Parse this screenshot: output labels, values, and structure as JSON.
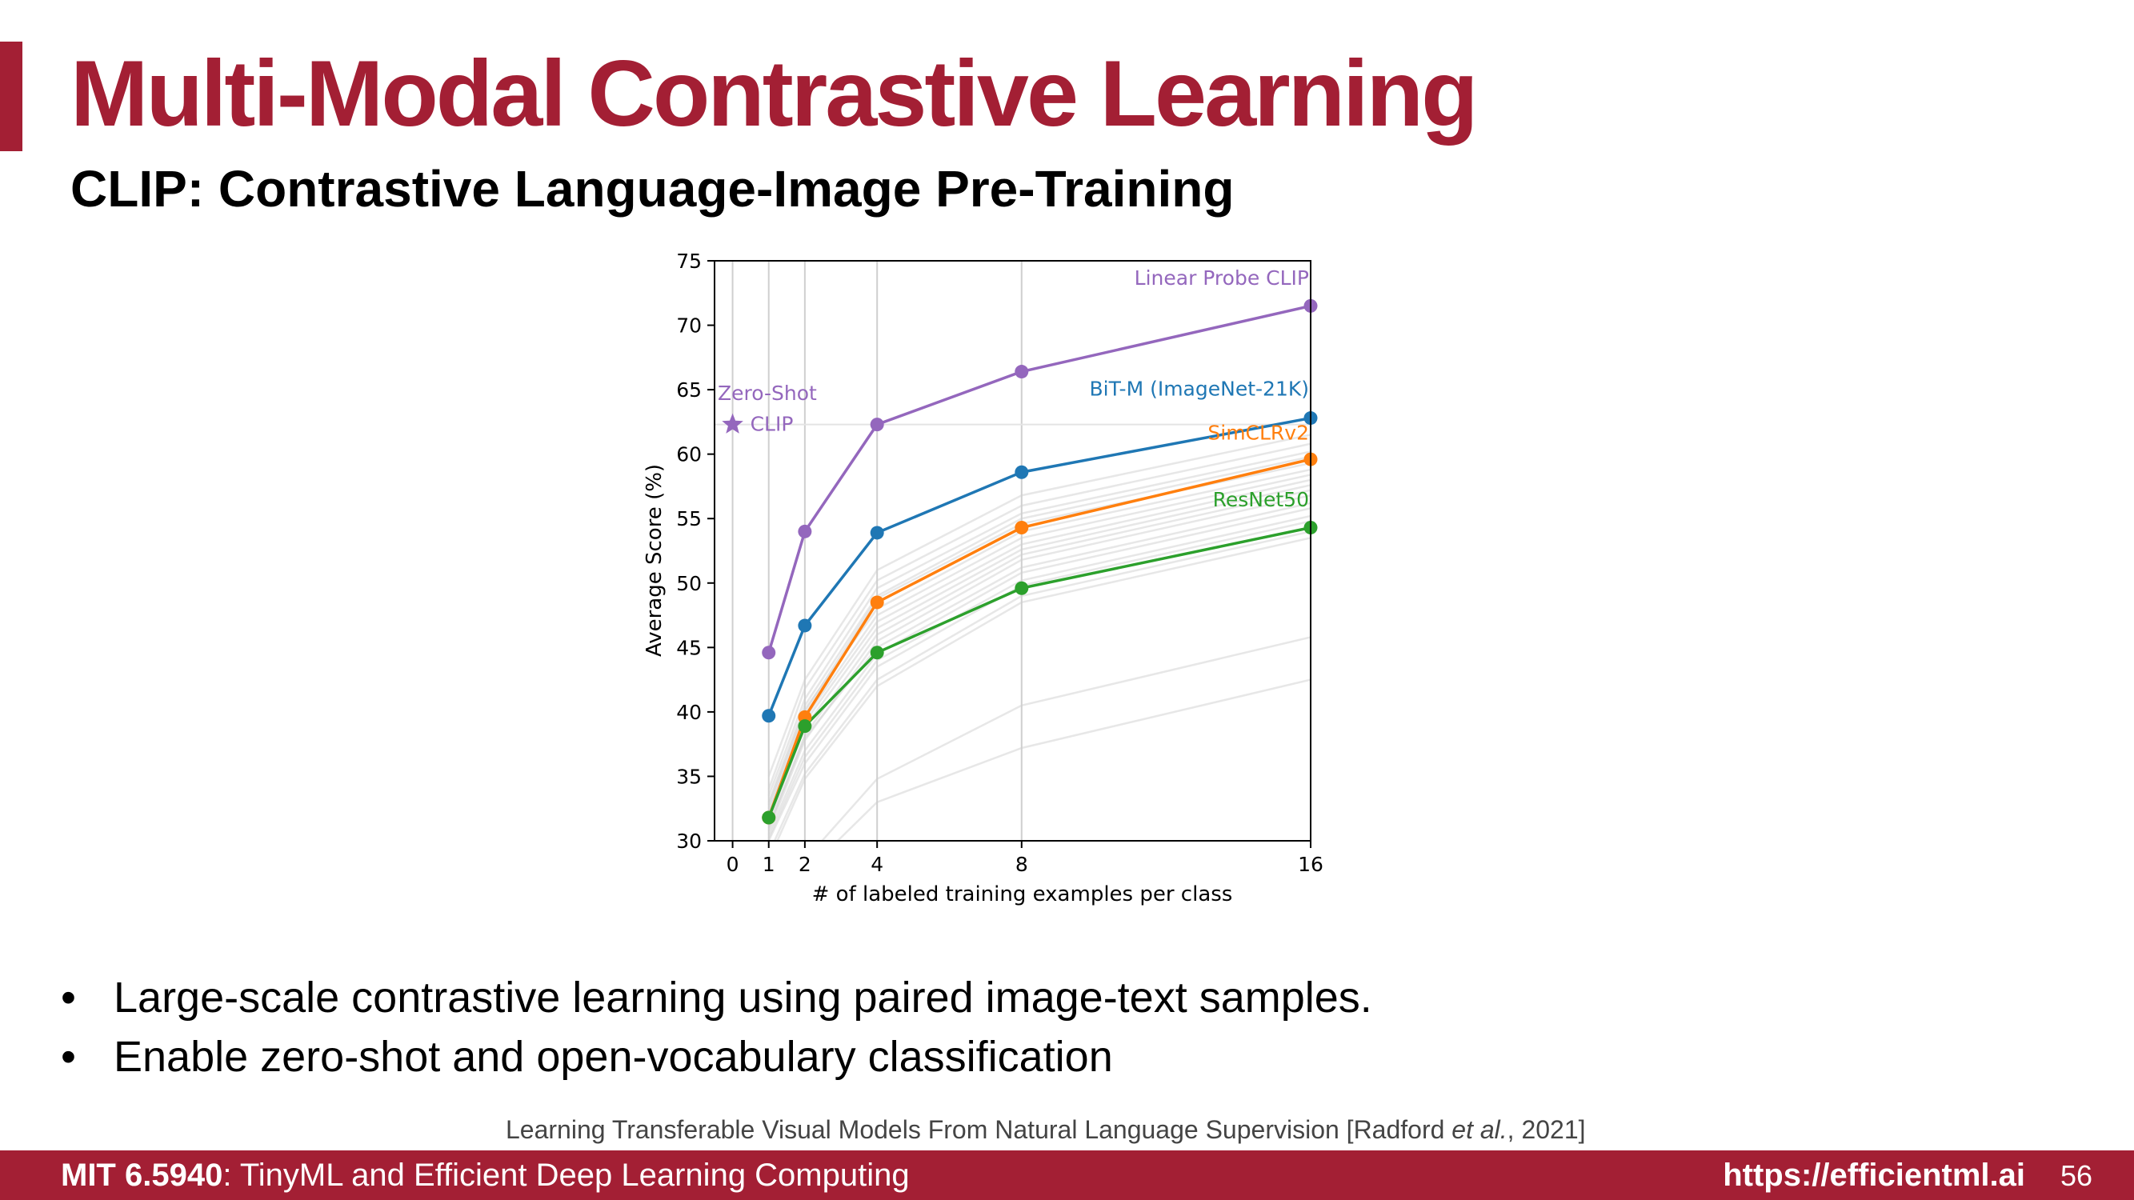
{
  "slide": {
    "title": "Multi-Modal Contrastive Learning",
    "subtitle": "CLIP: Contrastive Language-Image Pre-Training",
    "accent_color": "#a31f34"
  },
  "bullets": [
    "Large-scale contrastive learning using paired image-text samples.",
    "Enable zero-shot and open-vocabulary classification"
  ],
  "citation": {
    "prefix": "Learning Transferable Visual Models From Natural Language Supervision [Radford ",
    "etal": "et al.",
    "suffix": ", 2021]"
  },
  "footer": {
    "course_code": "MIT 6.5940",
    "course_rest": ": TinyML and Efficient Deep Learning Computing",
    "url": "https://efficientml.ai",
    "page": "56"
  },
  "chart_data": {
    "type": "line",
    "xlabel": "# of labeled training examples per class",
    "ylabel": "Average Score (%)",
    "xlim": [
      -0.5,
      16
    ],
    "ylim": [
      30,
      75
    ],
    "x_ticks": [
      0,
      1,
      2,
      4,
      8,
      16
    ],
    "y_ticks": [
      30,
      35,
      40,
      45,
      50,
      55,
      60,
      65,
      70,
      75
    ],
    "x_grid": [
      0,
      1,
      2,
      4,
      8,
      16
    ],
    "x": [
      1,
      2,
      4,
      8,
      16
    ],
    "series": [
      {
        "name": "Linear Probe CLIP",
        "color": "#9467bd",
        "values": [
          44.6,
          54.0,
          62.3,
          66.4,
          71.5
        ]
      },
      {
        "name": "BiT-M (ImageNet-21K)",
        "color": "#1f77b4",
        "values": [
          39.7,
          46.7,
          53.9,
          58.6,
          62.8
        ]
      },
      {
        "name": "SimCLRv2",
        "color": "#ff7f0e",
        "values": [
          31.8,
          39.6,
          48.5,
          54.3,
          59.6
        ]
      },
      {
        "name": "ResNet50",
        "color": "#2ca02c",
        "values": [
          31.8,
          38.9,
          44.6,
          49.6,
          54.3
        ]
      }
    ],
    "zero_shot": {
      "label_line1": "Zero-Shot",
      "label_line2": "CLIP",
      "x": 0,
      "y": 62.3,
      "color": "#9467bd",
      "marker": "star"
    },
    "background_series_color": "#d3d3d3",
    "background_series": [
      [
        35.0,
        42.5,
        51.0,
        56.8,
        61.5
      ],
      [
        34.0,
        41.8,
        50.2,
        56.0,
        60.8
      ],
      [
        33.5,
        41.0,
        49.6,
        55.4,
        60.2
      ],
      [
        33.0,
        40.5,
        49.0,
        55.0,
        59.8
      ],
      [
        32.5,
        40.0,
        48.8,
        54.6,
        59.3
      ],
      [
        32.8,
        40.2,
        48.0,
        54.0,
        58.8
      ],
      [
        32.2,
        39.5,
        47.5,
        53.5,
        58.4
      ],
      [
        32.0,
        39.2,
        47.0,
        53.0,
        58.0
      ],
      [
        31.5,
        38.8,
        46.5,
        52.6,
        57.6
      ],
      [
        31.0,
        38.2,
        46.0,
        52.2,
        57.2
      ],
      [
        30.8,
        37.8,
        45.5,
        51.8,
        56.8
      ],
      [
        31.2,
        38.0,
        45.0,
        51.2,
        56.2
      ],
      [
        30.5,
        37.0,
        44.5,
        50.8,
        55.8
      ],
      [
        30.2,
        36.5,
        44.0,
        50.2,
        55.2
      ],
      [
        30.0,
        36.0,
        43.5,
        49.8,
        54.8
      ],
      [
        29.0,
        35.2,
        42.5,
        49.0,
        54.0
      ],
      [
        28.5,
        34.8,
        42.0,
        48.5,
        53.5
      ],
      [
        27.0,
        28.5,
        34.8,
        40.5,
        45.8
      ],
      [
        26.0,
        27.5,
        33.0,
        37.2,
        42.5
      ]
    ]
  }
}
